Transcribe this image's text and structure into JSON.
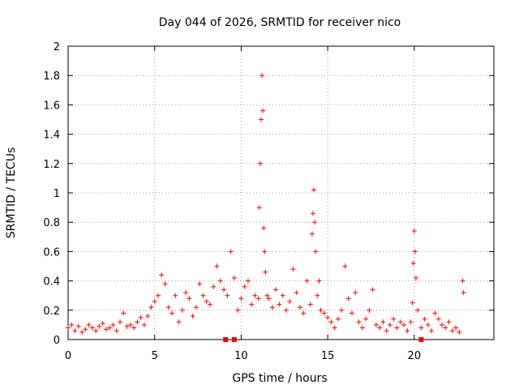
{
  "chart_data": {
    "type": "scatter",
    "title": "Day 044 of 2026, SRMTID for receiver nico",
    "xlabel": "GPS time / hours",
    "ylabel": "SRMTID / TECUs",
    "xlim": [
      0,
      24.6
    ],
    "ylim": [
      0,
      2
    ],
    "xticks": [
      0,
      5,
      10,
      15,
      20
    ],
    "yticks": [
      0,
      0.2,
      0.4,
      0.6,
      0.8,
      1,
      1.2,
      1.4,
      1.6,
      1.8,
      2
    ],
    "grid": true,
    "marker": "+",
    "color": "#ff0000",
    "series": [
      {
        "name": "SRMTID",
        "x": [
          0.0,
          0.2,
          0.4,
          0.6,
          0.8,
          1.0,
          1.2,
          1.4,
          1.6,
          1.8,
          2.0,
          2.2,
          2.4,
          2.6,
          2.8,
          3.0,
          3.2,
          3.4,
          3.6,
          3.8,
          4.0,
          4.2,
          4.4,
          4.6,
          4.8,
          5.0,
          5.2,
          5.4,
          5.6,
          5.8,
          6.0,
          6.2,
          6.4,
          6.6,
          6.8,
          7.0,
          7.2,
          7.4,
          7.6,
          7.8,
          8.0,
          8.2,
          8.4,
          8.6,
          8.8,
          9.0,
          9.2,
          9.4,
          9.6,
          9.8,
          10.0,
          10.2,
          10.4,
          10.6,
          10.8,
          11.0,
          11.05,
          11.1,
          11.15,
          11.2,
          11.25,
          11.3,
          11.35,
          11.4,
          11.5,
          11.6,
          11.8,
          12.0,
          12.2,
          12.4,
          12.6,
          12.8,
          13.0,
          13.2,
          13.4,
          13.6,
          13.8,
          14.0,
          14.1,
          14.15,
          14.2,
          14.25,
          14.3,
          14.4,
          14.5,
          14.6,
          14.8,
          15.0,
          15.2,
          15.4,
          15.6,
          15.8,
          16.0,
          16.2,
          16.4,
          16.6,
          16.8,
          17.0,
          17.2,
          17.4,
          17.6,
          17.8,
          18.0,
          18.2,
          18.4,
          18.6,
          18.8,
          19.0,
          19.2,
          19.4,
          19.6,
          19.8,
          19.9,
          19.95,
          20.0,
          20.05,
          20.1,
          20.2,
          20.4,
          20.6,
          20.8,
          21.0,
          21.2,
          21.4,
          21.6,
          21.8,
          22.0,
          22.2,
          22.4,
          22.6,
          22.8,
          22.85
        ],
        "y": [
          0.08,
          0.1,
          0.06,
          0.09,
          0.05,
          0.07,
          0.1,
          0.08,
          0.06,
          0.09,
          0.11,
          0.07,
          0.08,
          0.1,
          0.06,
          0.12,
          0.18,
          0.09,
          0.1,
          0.08,
          0.12,
          0.15,
          0.1,
          0.16,
          0.22,
          0.26,
          0.3,
          0.44,
          0.38,
          0.22,
          0.18,
          0.3,
          0.12,
          0.2,
          0.32,
          0.28,
          0.16,
          0.22,
          0.38,
          0.3,
          0.26,
          0.24,
          0.36,
          0.5,
          0.4,
          0.34,
          0.3,
          0.6,
          0.42,
          0.2,
          0.28,
          0.36,
          0.4,
          0.24,
          0.3,
          0.28,
          0.9,
          1.2,
          1.5,
          1.8,
          1.56,
          0.76,
          0.6,
          0.46,
          0.3,
          0.28,
          0.22,
          0.34,
          0.24,
          0.3,
          0.2,
          0.26,
          0.48,
          0.32,
          0.22,
          0.18,
          0.4,
          0.24,
          0.72,
          0.86,
          1.02,
          0.8,
          0.6,
          0.3,
          0.4,
          0.2,
          0.18,
          0.15,
          0.12,
          0.08,
          0.14,
          0.2,
          0.5,
          0.28,
          0.18,
          0.32,
          0.12,
          0.08,
          0.14,
          0.2,
          0.34,
          0.1,
          0.08,
          0.12,
          0.06,
          0.1,
          0.14,
          0.08,
          0.12,
          0.1,
          0.06,
          0.12,
          0.25,
          0.52,
          0.74,
          0.6,
          0.42,
          0.2,
          0.08,
          0.14,
          0.1,
          0.06,
          0.18,
          0.14,
          0.1,
          0.08,
          0.12,
          0.06,
          0.08,
          0.05,
          0.4,
          0.32
        ]
      }
    ],
    "markers_on_axis": {
      "x": [
        9.1,
        9.6,
        20.4
      ],
      "y": 0
    }
  }
}
